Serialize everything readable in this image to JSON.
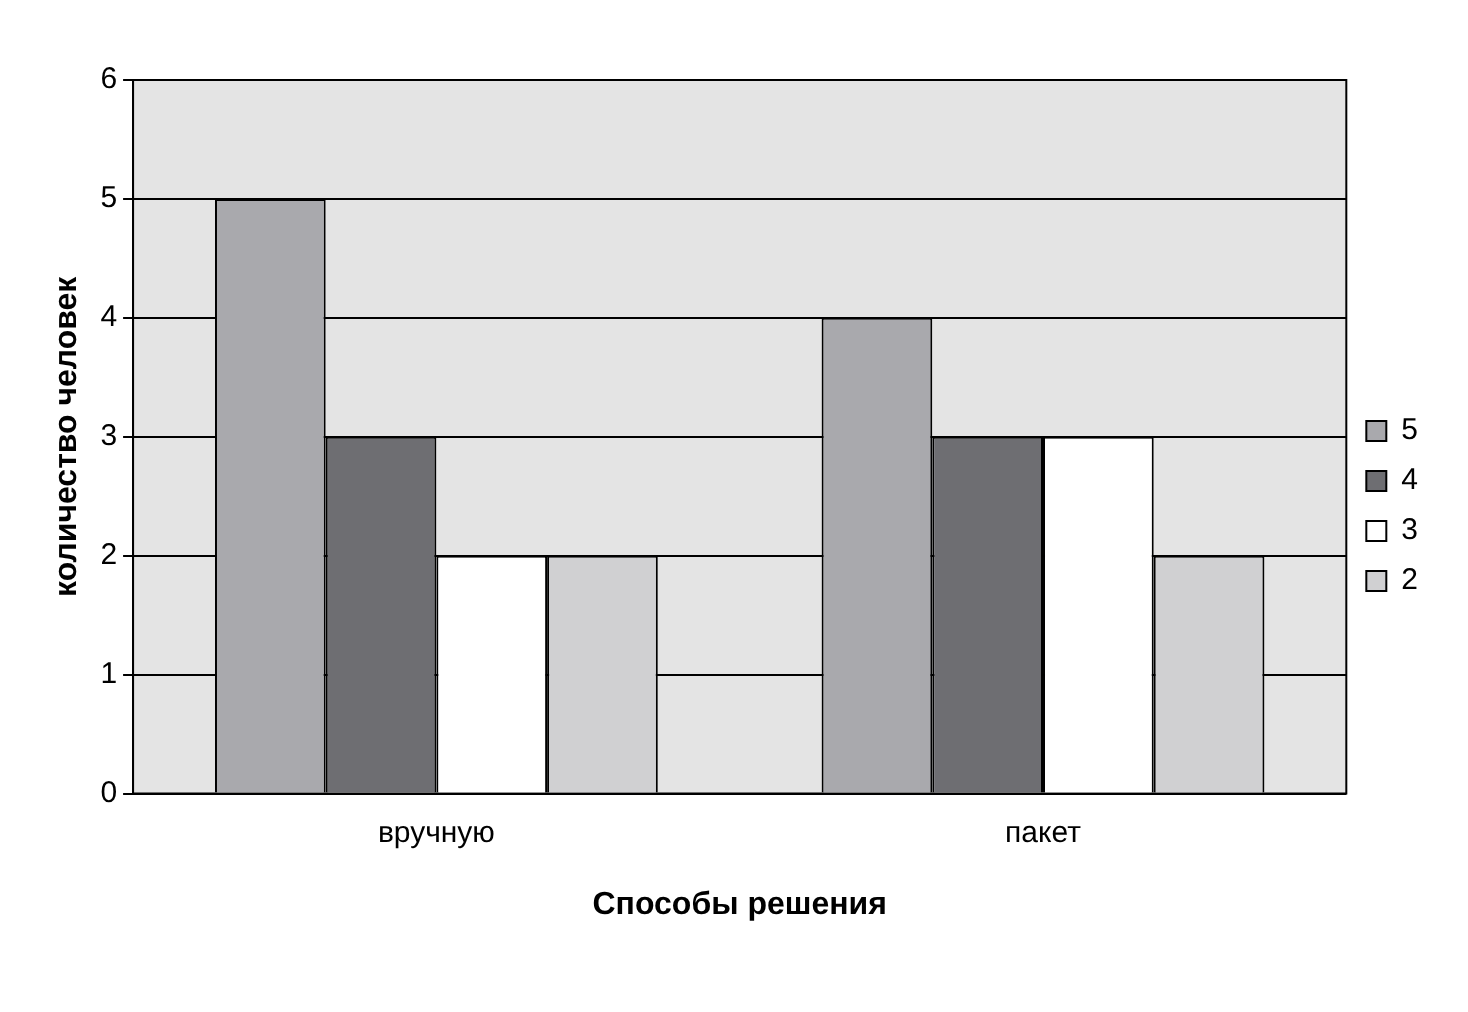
{
  "chart_data": {
    "type": "bar",
    "xlabel": "Способы решения",
    "ylabel": "количество человек",
    "categories": [
      "вручную",
      "пакет"
    ],
    "series": [
      {
        "name": "5",
        "color": "#a9a9ad",
        "values": [
          5,
          4
        ]
      },
      {
        "name": "4",
        "color": "#6e6e72",
        "values": [
          3,
          3
        ]
      },
      {
        "name": "3",
        "color": "#ffffff",
        "values": [
          2,
          3
        ]
      },
      {
        "name": "2",
        "color": "#d0d0d2",
        "values": [
          2,
          2
        ]
      }
    ],
    "ylim": [
      0,
      6
    ],
    "yticks": [
      0,
      1,
      2,
      3,
      4,
      5,
      6
    ],
    "grid": "y",
    "legend": "right"
  }
}
